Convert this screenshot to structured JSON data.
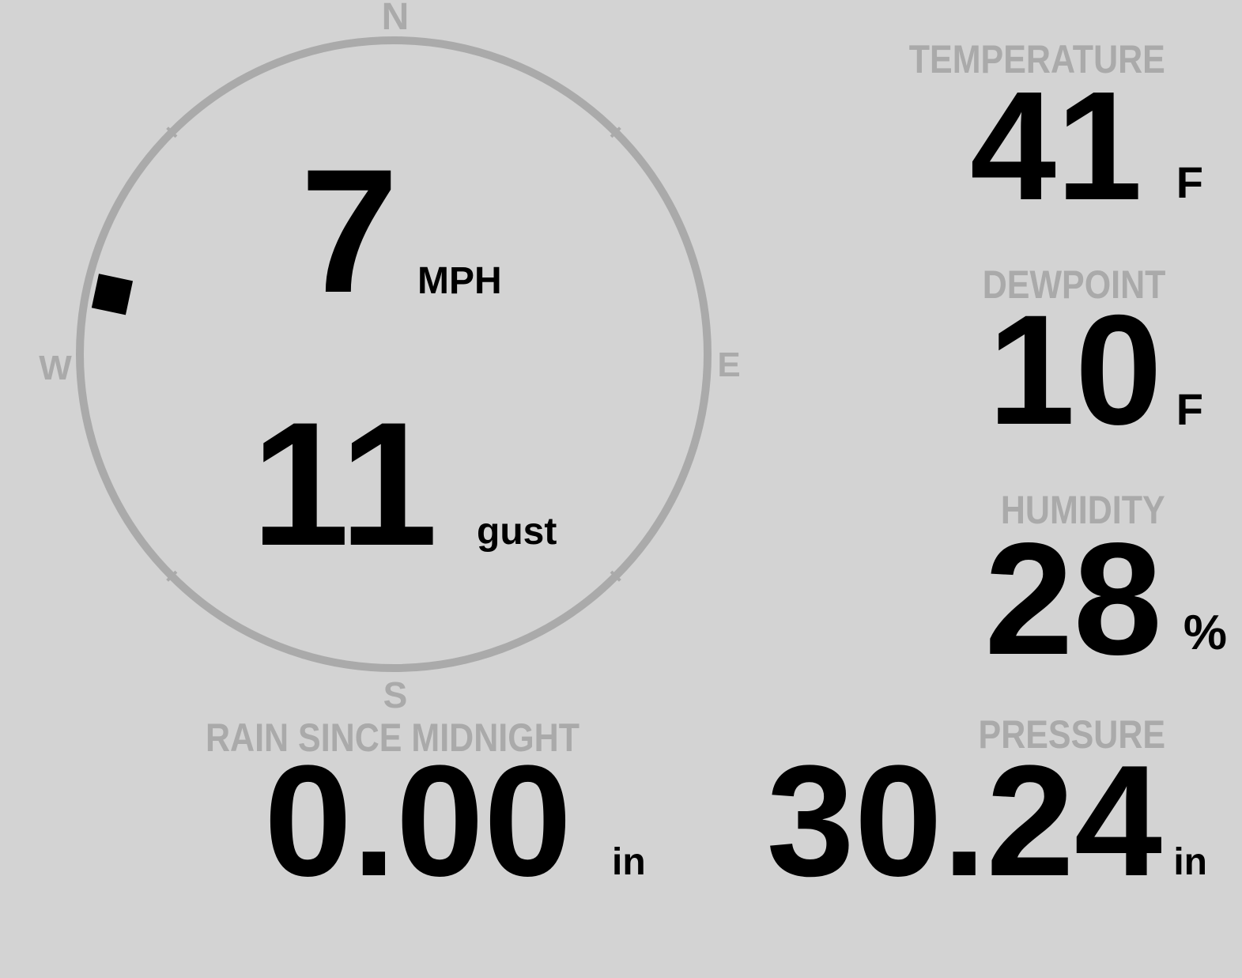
{
  "colors": {
    "background": "#d3d3d3",
    "ring": "#aaaaaa",
    "label": "#aaaaaa",
    "value": "#000000",
    "wind_marker": "#000000"
  },
  "compass": {
    "north": "N",
    "east": "E",
    "south": "S",
    "west": "W",
    "wind_direction_deg": 282
  },
  "wind": {
    "speed": "7",
    "speed_unit": "MPH",
    "gust": "11",
    "gust_unit": "gust"
  },
  "temperature": {
    "label": "TEMPERATURE",
    "value": "41",
    "unit": "F"
  },
  "dewpoint": {
    "label": "DEWPOINT",
    "value": "10",
    "unit": "F"
  },
  "humidity": {
    "label": "HUMIDITY",
    "value": "28",
    "unit": "%"
  },
  "rain": {
    "label": "RAIN SINCE MIDNIGHT",
    "value": "0.00",
    "unit": "in"
  },
  "pressure": {
    "label": "PRESSURE",
    "value": "30.24",
    "unit": "in"
  }
}
